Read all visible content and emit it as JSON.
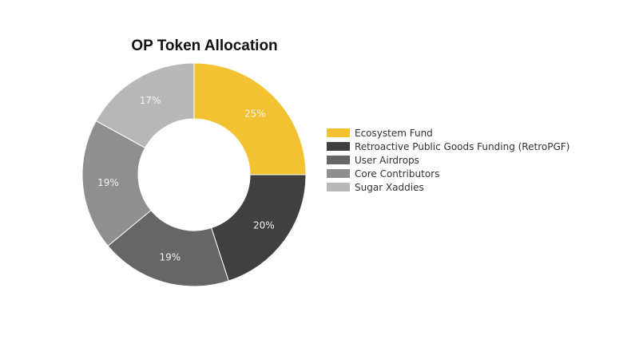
{
  "chart_data": {
    "type": "pie",
    "title": "OP Token Allocation",
    "donut": true,
    "legend_position": "right",
    "slices": [
      {
        "label": "Ecosystem Fund",
        "value": 25,
        "value_label": "25%",
        "color": "#f2c232"
      },
      {
        "label": "Retroactive Public Goods Funding (RetroPGF)",
        "value": 20,
        "value_label": "20%",
        "color": "#404040"
      },
      {
        "label": "User Airdrops",
        "value": 19,
        "value_label": "19%",
        "color": "#666666"
      },
      {
        "label": "Core Contributors",
        "value": 19,
        "value_label": "19%",
        "color": "#8f8f8f"
      },
      {
        "label": "Sugar Xaddies",
        "value": 17,
        "value_label": "17%",
        "color": "#b8b8b8"
      }
    ]
  }
}
